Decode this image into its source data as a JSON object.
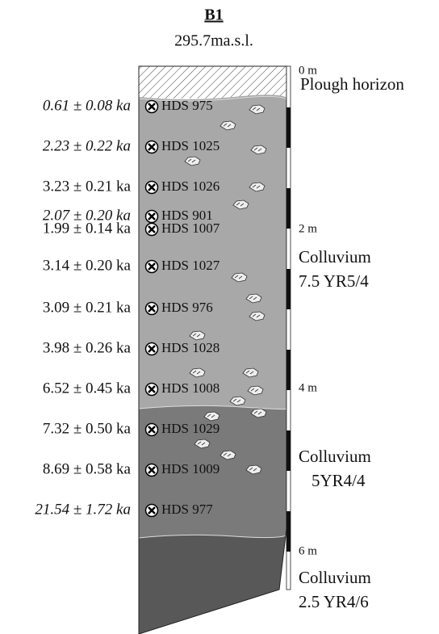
{
  "header": {
    "title": "B1",
    "elevation": "295.7ma.s.l."
  },
  "samples": [
    {
      "age": "0.61 ± 0.08 ka",
      "id": "HDS 975",
      "italic": true
    },
    {
      "age": "2.23 ± 0.22 ka",
      "id": "HDS 1025",
      "italic": true
    },
    {
      "age": "3.23 ± 0.21 ka",
      "id": "HDS 1026",
      "italic": false
    },
    {
      "age": "2.07 ± 0.20 ka",
      "id": "HDS 901",
      "italic": true
    },
    {
      "age": "1.99 ± 0.14 ka",
      "id": "HDS 1007",
      "italic": false
    },
    {
      "age": "3.14 ± 0.20 ka",
      "id": "HDS 1027",
      "italic": false
    },
    {
      "age": "3.09 ± 0.21 ka",
      "id": "HDS 976",
      "italic": false
    },
    {
      "age": "3.98 ± 0.26 ka",
      "id": "HDS 1028",
      "italic": false
    },
    {
      "age": "6.52 ± 0.45 ka",
      "id": "HDS 1008",
      "italic": false
    },
    {
      "age": "7.32 ± 0.50 ka",
      "id": "HDS 1029",
      "italic": false
    },
    {
      "age": "8.69 ± 0.58 ka",
      "id": "HDS 1009",
      "italic": false
    },
    {
      "age": "21.54 ± 1.72 ka",
      "id": "HDS 977",
      "italic": true
    }
  ],
  "depth_scale": [
    "0 m",
    "2 m",
    "4 m",
    "6 m"
  ],
  "units": [
    {
      "lines": [
        "Plough horizon"
      ]
    },
    {
      "lines": [
        "Colluvium",
        "7.5 YR5/4"
      ]
    },
    {
      "lines": [
        "Colluvium",
        "5YR4/4"
      ]
    },
    {
      "lines": [
        "Colluvium",
        "2.5 YR4/6"
      ]
    }
  ]
}
